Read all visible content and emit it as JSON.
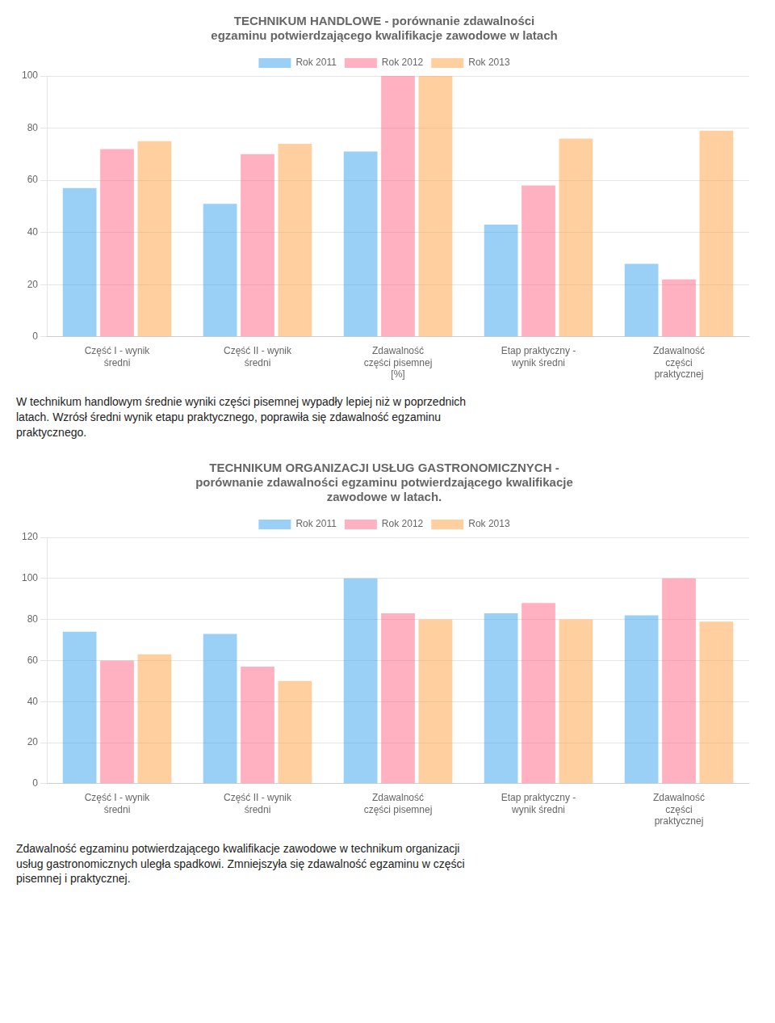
{
  "chart_data": [
    {
      "type": "bar",
      "title": "TECHNIKUM HANDLOWE - porównanie zdawalności\negzaminu potwierdzającego kwalifikacje zawodowe w latach",
      "categories": [
        "Część I - wynik\nśredni",
        "Część II - wynik\nśredni",
        "Zdawalność\nczęści pisemnej\n[%]",
        "Etap praktyczny -\nwynik średni",
        "Zdawalność\nczęści\npraktycznej"
      ],
      "series": [
        {
          "name": "Rok 2011",
          "values": [
            57,
            51,
            71,
            43,
            28
          ]
        },
        {
          "name": "Rok 2012",
          "values": [
            72,
            70,
            100,
            58,
            22
          ]
        },
        {
          "name": "Rok 2013",
          "values": [
            75,
            74,
            100,
            76,
            79
          ]
        }
      ],
      "ylim": [
        0,
        100
      ],
      "yticks": [
        0,
        20,
        40,
        60,
        80,
        100
      ],
      "grid": true,
      "legend": "top",
      "annotation": "W technikum handlowym średnie wyniki części pisemnej wypadły lepiej niż w poprzednich\nlatach. Wzrósł średni wynik etapu praktycznego, poprawiła się zdawalność egzaminu\npraktycznego."
    },
    {
      "type": "bar",
      "title": "TECHNIKUM ORGANIZACJI USŁUG GASTRONOMICZNYCH -\nporównanie zdawalności egzaminu potwierdzającego kwalifikacje\nzawodowe w latach.",
      "categories": [
        "Część I - wynik\nśredni",
        "Część II - wynik\nśredni",
        "Zdawalność\nczęści pisemnej",
        "Etap praktyczny -\nwynik średni",
        "Zdawalność\nczęści\npraktycznej"
      ],
      "series": [
        {
          "name": "Rok 2011",
          "values": [
            74,
            73,
            100,
            83,
            82
          ]
        },
        {
          "name": "Rok 2012",
          "values": [
            60,
            57,
            83,
            88,
            100
          ]
        },
        {
          "name": "Rok 2013",
          "values": [
            63,
            50,
            80,
            80,
            79
          ]
        }
      ],
      "ylim": [
        0,
        120
      ],
      "yticks": [
        0,
        20,
        40,
        60,
        80,
        100,
        120
      ],
      "grid": true,
      "legend": "top",
      "annotation": "Zdawalność egzaminu potwierdzającego kwalifikacje zawodowe w technikum organizacji\nusług gastronomicznych uległa spadkowi. Zmniejszyła się zdawalność egzaminu w części\npisemnej i praktycznej."
    }
  ]
}
